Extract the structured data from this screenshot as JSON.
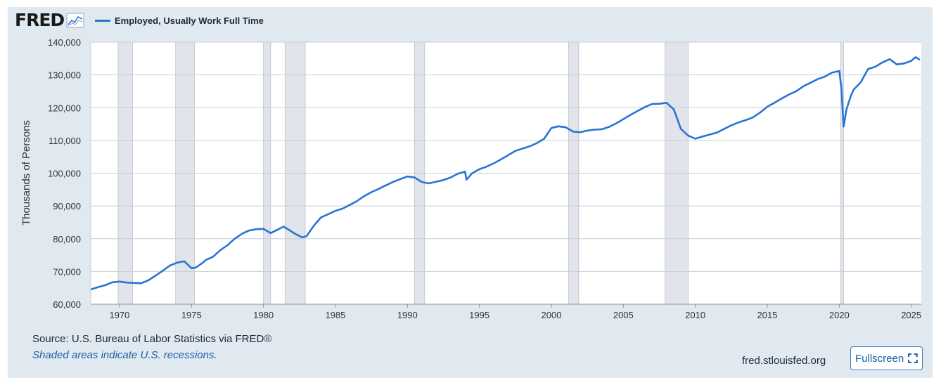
{
  "header": {
    "logo_text": "FRED",
    "logo_icon": "line-graph-icon"
  },
  "chart_data": {
    "type": "line",
    "title": "",
    "xlabel": "",
    "ylabel": "Thousands of Persons",
    "xlim": [
      1968,
      2025.7
    ],
    "ylim": [
      60000,
      140000
    ],
    "x_ticks": [
      1970,
      1975,
      1980,
      1985,
      1990,
      1995,
      2000,
      2005,
      2010,
      2015,
      2020,
      2025
    ],
    "x_tick_labels": [
      "1970",
      "1975",
      "1980",
      "1985",
      "1990",
      "1995",
      "2000",
      "2005",
      "2010",
      "2015",
      "2020",
      "2025"
    ],
    "y_ticks": [
      60000,
      70000,
      80000,
      90000,
      100000,
      110000,
      120000,
      130000,
      140000
    ],
    "y_tick_labels": [
      "60,000",
      "70,000",
      "80,000",
      "90,000",
      "100,000",
      "110,000",
      "120,000",
      "130,000",
      "140,000"
    ],
    "grid": true,
    "legend_position": "top-left",
    "series": [
      {
        "name": "Employed, Usually Work Full Time",
        "color": "#2b73d3",
        "x": [
          1968.0,
          1968.5,
          1969.0,
          1969.5,
          1970.0,
          1970.5,
          1971.0,
          1971.5,
          1972.0,
          1972.5,
          1973.0,
          1973.5,
          1974.0,
          1974.5,
          1975.0,
          1975.3,
          1975.7,
          1976.0,
          1976.5,
          1977.0,
          1977.5,
          1978.0,
          1978.5,
          1979.0,
          1979.5,
          1980.0,
          1980.5,
          1981.0,
          1981.4,
          1981.8,
          1982.2,
          1982.7,
          1983.0,
          1983.5,
          1984.0,
          1984.5,
          1985.0,
          1985.5,
          1986.0,
          1986.5,
          1987.0,
          1987.5,
          1988.0,
          1988.5,
          1989.0,
          1989.5,
          1990.0,
          1990.5,
          1991.0,
          1991.5,
          1992.0,
          1992.5,
          1993.0,
          1993.5,
          1994.0,
          1994.1,
          1994.5,
          1995.0,
          1995.5,
          1996.0,
          1996.5,
          1997.0,
          1997.5,
          1998.0,
          1998.5,
          1999.0,
          1999.5,
          2000.0,
          2000.5,
          2001.0,
          2001.5,
          2002.0,
          2002.5,
          2003.0,
          2003.5,
          2004.0,
          2004.5,
          2005.0,
          2005.5,
          2006.0,
          2006.5,
          2007.0,
          2007.5,
          2008.0,
          2008.5,
          2009.0,
          2009.5,
          2010.0,
          2010.5,
          2011.0,
          2011.5,
          2012.0,
          2012.5,
          2013.0,
          2013.5,
          2014.0,
          2014.5,
          2015.0,
          2015.5,
          2016.0,
          2016.5,
          2017.0,
          2017.5,
          2018.0,
          2018.5,
          2019.0,
          2019.5,
          2020.0,
          2020.15,
          2020.3,
          2020.5,
          2020.8,
          2021.0,
          2021.5,
          2022.0,
          2022.5,
          2023.0,
          2023.5,
          2024.0,
          2024.5,
          2025.0,
          2025.3,
          2025.6
        ],
        "values": [
          64500,
          65200,
          65800,
          66700,
          66900,
          66600,
          66500,
          66400,
          67300,
          68700,
          70200,
          71800,
          72700,
          73100,
          71000,
          71200,
          72400,
          73500,
          74500,
          76500,
          78000,
          80000,
          81500,
          82500,
          82900,
          83000,
          81700,
          82800,
          83700,
          82600,
          81500,
          80400,
          80800,
          84000,
          86500,
          87500,
          88500,
          89200,
          90300,
          91500,
          93000,
          94200,
          95200,
          96300,
          97300,
          98200,
          99000,
          98700,
          97300,
          96900,
          97400,
          97900,
          98700,
          99800,
          100500,
          98000,
          100000,
          101200,
          102000,
          103000,
          104200,
          105500,
          106800,
          107500,
          108200,
          109200,
          110500,
          113800,
          114300,
          114000,
          112700,
          112500,
          113000,
          113300,
          113400,
          114100,
          115200,
          116500,
          117800,
          119000,
          120200,
          121100,
          121200,
          121500,
          119500,
          113500,
          111500,
          110500,
          111200,
          111800,
          112400,
          113500,
          114600,
          115500,
          116200,
          117000,
          118500,
          120300,
          121500,
          122800,
          124000,
          125000,
          126500,
          127600,
          128700,
          129500,
          130700,
          131200,
          126000,
          114200,
          119500,
          123500,
          125500,
          127800,
          131800,
          132500,
          133800,
          134800,
          133200,
          133500,
          134300,
          135400,
          134600
        ]
      }
    ],
    "recessions": [
      [
        1969.9,
        1970.9
      ],
      [
        1973.9,
        1975.2
      ],
      [
        1980.0,
        1980.5
      ],
      [
        1981.5,
        1982.9
      ],
      [
        1990.5,
        1991.2
      ],
      [
        2001.2,
        2001.9
      ],
      [
        2007.9,
        2009.5
      ],
      [
        2020.1,
        2020.3
      ]
    ]
  },
  "footer": {
    "source": "Source: U.S. Bureau of Labor Statistics via FRED®",
    "recession_note": "Shaded areas indicate U.S. recessions.",
    "site_url": "fred.stlouisfed.org",
    "fullscreen_label": "Fullscreen",
    "fullscreen_icon": "expand-icon"
  }
}
